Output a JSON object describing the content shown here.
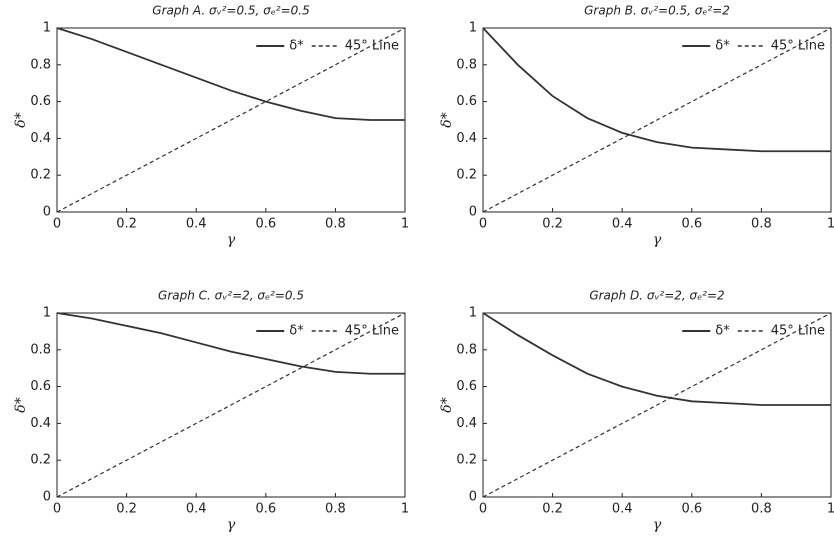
{
  "chart_data": [
    {
      "type": "line",
      "title": "Graph A. σᵥ²=0.5, σₑ²=0.5",
      "x_label": "γ",
      "y_label": "δ*",
      "x": [
        0,
        0.1,
        0.2,
        0.3,
        0.4,
        0.5,
        0.6,
        0.7,
        0.8,
        0.9,
        1
      ],
      "series": [
        {
          "name": "δ*",
          "color": "#333333",
          "linestyle": "solid",
          "values": [
            1,
            0.94,
            0.87,
            0.8,
            0.73,
            0.66,
            0.6,
            0.55,
            0.51,
            0.5,
            0.5
          ]
        },
        {
          "name": "45° Line",
          "color": "#333333",
          "linestyle": "dashed",
          "values": [
            0,
            0.1,
            0.2,
            0.3,
            0.4,
            0.5,
            0.6,
            0.7,
            0.8,
            0.9,
            1
          ]
        }
      ],
      "xlim": [
        0,
        1
      ],
      "ylim": [
        0,
        1
      ],
      "xticks": [
        0,
        0.2,
        0.4,
        0.6,
        0.8,
        1
      ],
      "yticks": [
        0,
        0.2,
        0.4,
        0.6,
        0.8,
        1
      ],
      "legend": "upper right"
    },
    {
      "type": "line",
      "title": "Graph B. σᵥ²=0.5, σₑ²=2",
      "x_label": "γ",
      "y_label": "δ*",
      "x": [
        0,
        0.1,
        0.2,
        0.3,
        0.4,
        0.5,
        0.6,
        0.7,
        0.8,
        0.9,
        1
      ],
      "series": [
        {
          "name": "δ*",
          "color": "#333333",
          "linestyle": "solid",
          "values": [
            1,
            0.8,
            0.63,
            0.51,
            0.43,
            0.38,
            0.35,
            0.34,
            0.33,
            0.33,
            0.33
          ]
        },
        {
          "name": "45° Line",
          "color": "#333333",
          "linestyle": "dashed",
          "values": [
            0,
            0.1,
            0.2,
            0.3,
            0.4,
            0.5,
            0.6,
            0.7,
            0.8,
            0.9,
            1
          ]
        }
      ],
      "xlim": [
        0,
        1
      ],
      "ylim": [
        0,
        1
      ],
      "xticks": [
        0,
        0.2,
        0.4,
        0.6,
        0.8,
        1
      ],
      "yticks": [
        0,
        0.2,
        0.4,
        0.6,
        0.8,
        1
      ],
      "legend": "upper right"
    },
    {
      "type": "line",
      "title": "Graph C. σᵥ²=2, σₑ²=0.5",
      "x_label": "γ",
      "y_label": "δ*",
      "x": [
        0,
        0.1,
        0.2,
        0.3,
        0.4,
        0.5,
        0.6,
        0.7,
        0.8,
        0.9,
        1
      ],
      "series": [
        {
          "name": "δ*",
          "color": "#333333",
          "linestyle": "solid",
          "values": [
            1,
            0.97,
            0.93,
            0.89,
            0.84,
            0.79,
            0.75,
            0.71,
            0.68,
            0.67,
            0.67
          ]
        },
        {
          "name": "45° Line",
          "color": "#333333",
          "linestyle": "dashed",
          "values": [
            0,
            0.1,
            0.2,
            0.3,
            0.4,
            0.5,
            0.6,
            0.7,
            0.8,
            0.9,
            1
          ]
        }
      ],
      "xlim": [
        0,
        1
      ],
      "ylim": [
        0,
        1
      ],
      "xticks": [
        0,
        0.2,
        0.4,
        0.6,
        0.8,
        1
      ],
      "yticks": [
        0,
        0.2,
        0.4,
        0.6,
        0.8,
        1
      ],
      "legend": "upper right"
    },
    {
      "type": "line",
      "title": "Graph D. σᵥ²=2, σₑ²=2",
      "x_label": "γ",
      "y_label": "δ*",
      "x": [
        0,
        0.1,
        0.2,
        0.3,
        0.4,
        0.5,
        0.6,
        0.7,
        0.8,
        0.9,
        1
      ],
      "series": [
        {
          "name": "δ*",
          "color": "#333333",
          "linestyle": "solid",
          "values": [
            1,
            0.88,
            0.77,
            0.67,
            0.6,
            0.55,
            0.52,
            0.51,
            0.5,
            0.5,
            0.5
          ]
        },
        {
          "name": "45° Line",
          "color": "#333333",
          "linestyle": "dashed",
          "values": [
            0,
            0.1,
            0.2,
            0.3,
            0.4,
            0.5,
            0.6,
            0.7,
            0.8,
            0.9,
            1
          ]
        }
      ],
      "xlim": [
        0,
        1
      ],
      "ylim": [
        0,
        1
      ],
      "xticks": [
        0,
        0.2,
        0.4,
        0.6,
        0.8,
        1
      ],
      "yticks": [
        0,
        0.2,
        0.4,
        0.6,
        0.8,
        1
      ],
      "legend": "upper right"
    }
  ]
}
